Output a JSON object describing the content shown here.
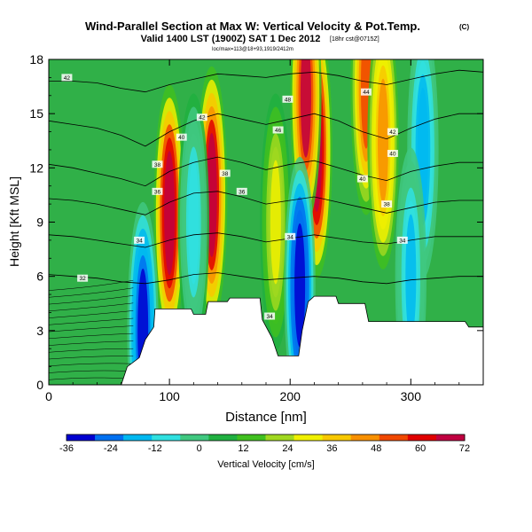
{
  "chart_data": {
    "type": "heatmap",
    "title": "Wind-Parallel Section at Max W: Vertical Velocity & Pot.Temp.",
    "title_unit": "(C)",
    "subtitle": "Valid 1400 LST (1900Z) SAT 1 Dec 2012",
    "subtitle_run": "[18hr cst@0715Z]",
    "subtitle_small": "loc/max=113@18+93,1919/2412m",
    "xlabel": "Distance [nm]",
    "ylabel": "Height [Kft MSL]",
    "xlim": [
      0,
      360
    ],
    "ylim": [
      0,
      18
    ],
    "xticks": [
      0,
      100,
      200,
      300
    ],
    "yticks": [
      0,
      3,
      6,
      9,
      12,
      15,
      18
    ],
    "colorbar": {
      "label": "Vertical Velocity [cm/s]",
      "ticks": [
        -36,
        -24,
        -12,
        0,
        12,
        24,
        36,
        48,
        60,
        72
      ],
      "range": [
        -36,
        72
      ],
      "colors": [
        "#0000d0",
        "#0070f0",
        "#00b8f0",
        "#30e0e0",
        "#40c880",
        "#20b040",
        "#40c020",
        "#a0d820",
        "#f0f000",
        "#f8c800",
        "#f89000",
        "#f04800",
        "#e00000",
        "#c00040"
      ]
    },
    "terrain_profile": {
      "x": [
        0,
        60,
        65,
        75,
        80,
        87,
        88,
        95,
        100,
        118,
        120,
        130,
        132,
        148,
        150,
        175,
        177,
        185,
        190,
        207,
        210,
        215,
        220,
        238,
        240,
        262,
        265,
        345,
        348,
        360
      ],
      "y": [
        0,
        0,
        1.0,
        1.5,
        2.5,
        3.2,
        4.2,
        4.2,
        4.2,
        4.2,
        3.9,
        3.9,
        4.6,
        4.6,
        4.8,
        4.8,
        3.6,
        2.6,
        1.6,
        1.6,
        3.0,
        4.6,
        4.9,
        4.9,
        4.5,
        4.5,
        3.5,
        3.5,
        3.2,
        3.2
      ]
    },
    "velocity_cells": [
      {
        "x": 100,
        "y": 9.5,
        "w": 72,
        "note": "updraft"
      },
      {
        "x": 135,
        "y": 10.5,
        "w": 70,
        "note": "updraft"
      },
      {
        "x": 222,
        "y": 13,
        "w": 72,
        "note": "updraft"
      },
      {
        "x": 213,
        "y": 16,
        "w": 66,
        "note": "updraft"
      },
      {
        "x": 263,
        "y": 16.5,
        "w": 52,
        "note": "updraft"
      },
      {
        "x": 277,
        "y": 13.5,
        "w": 46,
        "note": "updraft"
      },
      {
        "x": 188,
        "y": 9,
        "w": 26,
        "note": "updraft"
      },
      {
        "x": 208,
        "y": 5.5,
        "w": -34,
        "note": "downdraft"
      },
      {
        "x": 78,
        "y": 3,
        "w": -32,
        "note": "downdraft"
      },
      {
        "x": 310,
        "y": 13,
        "w": -20,
        "note": "downdraft"
      },
      {
        "x": 300,
        "y": 6,
        "w": -16,
        "note": "downdraft"
      },
      {
        "x": 120,
        "y": 9,
        "w": -10,
        "note": "downdraft"
      }
    ],
    "contour_labels": [
      {
        "text": "42",
        "x": 15,
        "y": 17.0
      },
      {
        "text": "48",
        "x": 198,
        "y": 15.8
      },
      {
        "text": "42",
        "x": 127,
        "y": 14.8
      },
      {
        "text": "46",
        "x": 190,
        "y": 14.1
      },
      {
        "text": "40",
        "x": 110,
        "y": 13.7
      },
      {
        "text": "44",
        "x": 263,
        "y": 16.2
      },
      {
        "text": "42",
        "x": 285,
        "y": 14.0
      },
      {
        "text": "40",
        "x": 285,
        "y": 12.8
      },
      {
        "text": "38",
        "x": 90,
        "y": 12.2
      },
      {
        "text": "38",
        "x": 146,
        "y": 11.7
      },
      {
        "text": "40",
        "x": 260,
        "y": 11.4
      },
      {
        "text": "36",
        "x": 90,
        "y": 10.7
      },
      {
        "text": "36",
        "x": 160,
        "y": 10.7
      },
      {
        "text": "38",
        "x": 280,
        "y": 10.0
      },
      {
        "text": "34",
        "x": 75,
        "y": 8.0
      },
      {
        "text": "34",
        "x": 200,
        "y": 8.2
      },
      {
        "text": "34",
        "x": 293,
        "y": 8.0
      },
      {
        "text": "32",
        "x": 28,
        "y": 5.9
      },
      {
        "text": "34",
        "x": 183,
        "y": 3.8
      }
    ],
    "isentropes": [
      {
        "theta": 42,
        "y": [
          16.8,
          16.8,
          16.7,
          16.4,
          16.2,
          16.6,
          16.9,
          17.2,
          17.1,
          17.0,
          17.2,
          17.3,
          17.1,
          16.8,
          16.6,
          16.9,
          17.2,
          17.4,
          17.3
        ]
      },
      {
        "theta": 40,
        "y": [
          14.6,
          14.4,
          14.2,
          13.8,
          13.2,
          14.0,
          14.6,
          15.0,
          14.7,
          14.4,
          14.7,
          15.0,
          14.6,
          14.0,
          13.6,
          14.2,
          14.7,
          15.0,
          15.0
        ]
      },
      {
        "theta": 38,
        "y": [
          12.2,
          12.0,
          11.7,
          11.4,
          11.0,
          11.8,
          12.3,
          12.6,
          12.3,
          11.9,
          12.2,
          12.4,
          12.0,
          11.6,
          11.3,
          11.8,
          12.1,
          12.3,
          12.3
        ]
      },
      {
        "theta": 36,
        "y": [
          10.3,
          10.2,
          10.0,
          9.7,
          9.4,
          10.1,
          10.6,
          10.7,
          10.4,
          10.0,
          10.2,
          10.4,
          10.1,
          9.8,
          9.5,
          9.8,
          10.1,
          10.2,
          10.2
        ]
      },
      {
        "theta": 34,
        "y": [
          8.3,
          8.2,
          8.0,
          7.8,
          7.6,
          8.0,
          8.3,
          8.4,
          8.2,
          7.9,
          8.1,
          8.3,
          8.1,
          7.9,
          7.8,
          8.0,
          8.2,
          8.2,
          8.2
        ]
      },
      {
        "theta": 32,
        "y": [
          6.1,
          6.0,
          5.9,
          5.7,
          5.6,
          5.8,
          6.1,
          6.2,
          6.0,
          5.8,
          5.9,
          6.0,
          5.9,
          5.7,
          5.6,
          5.8,
          5.9,
          6.0,
          6.0
        ]
      }
    ]
  }
}
